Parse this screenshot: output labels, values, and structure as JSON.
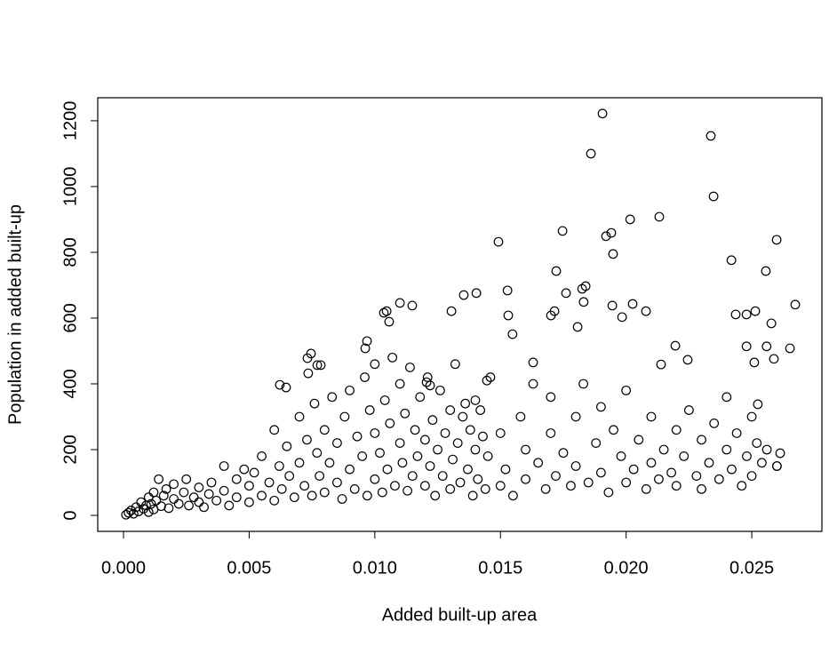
{
  "chart_data": {
    "type": "scatter",
    "x_label": "Added built-up area",
    "y_label": "Population in added built-up",
    "color": "#000000",
    "xlim": [
      -0.001025,
      0.02779
    ],
    "ylim": [
      -48.6,
      1270
    ],
    "xticks": [
      {
        "value": 0,
        "label": "0.000"
      },
      {
        "value": 0.005,
        "label": "0.005"
      },
      {
        "value": 0.01,
        "label": "0.010"
      },
      {
        "value": 0.015,
        "label": "0.015"
      },
      {
        "value": 0.02,
        "label": "0.020"
      },
      {
        "value": 0.025,
        "label": "0.025"
      }
    ],
    "yticks": [
      0,
      200,
      400,
      600,
      800,
      1000,
      1200
    ],
    "x": [
      0.01906,
      0.02337,
      0.0186,
      0.02348,
      0.02599,
      0.01492,
      0.02132,
      0.02016,
      0.01747,
      0.0192,
      0.01941,
      0.01948,
      0.02419,
      0.02556,
      0.02673,
      0.02652,
      0.01722,
      0.01761,
      0.01839,
      0.01825,
      0.01528,
      0.01354,
      0.01404,
      0.011,
      0.01149,
      0.01036,
      0.01047,
      0.01305,
      0.01057,
      0.01531,
      0.01548,
      0.01701,
      0.01715,
      0.02026,
      0.02079,
      0.01984,
      0.01945,
      0.01831,
      0.01807,
      0.02514,
      0.02479,
      0.02436,
      0.02578,
      0.02588,
      0.00622,
      0.00647,
      0.00746,
      0.00732,
      0.00771,
      0.00785,
      0.00735,
      0.00969,
      0.00962,
      0.01206,
      0.0122,
      0.0163,
      0.01446,
      0.02196,
      0.02245,
      0.02139,
      0.02479,
      0.02559,
      0.0251,
      0.02524,
      0.02613,
      0.026,
      0.0001,
      0.0002,
      0.0003,
      0.0004,
      0.0005,
      0.0006,
      0.0007,
      0.0008,
      0.0009,
      0.001,
      0.001,
      0.0011,
      0.0012,
      0.0012,
      0.0013,
      0.0014,
      0.0015,
      0.0016,
      0.0017,
      0.0018,
      0.002,
      0.002,
      0.0022,
      0.0024,
      0.0025,
      0.0026,
      0.0028,
      0.003,
      0.003,
      0.0032,
      0.0034,
      0.0035,
      0.0037,
      0.004,
      0.004,
      0.0042,
      0.0045,
      0.0045,
      0.0048,
      0.005,
      0.005,
      0.0052,
      0.0055,
      0.0055,
      0.0058,
      0.006,
      0.006,
      0.0062,
      0.0063,
      0.0065,
      0.0066,
      0.0068,
      0.007,
      0.007,
      0.0072,
      0.0073,
      0.0075,
      0.0076,
      0.0077,
      0.0078,
      0.008,
      0.008,
      0.0082,
      0.0083,
      0.0085,
      0.0085,
      0.0087,
      0.0088,
      0.009,
      0.009,
      0.0092,
      0.0093,
      0.0095,
      0.0096,
      0.0097,
      0.0098,
      0.01,
      0.01,
      0.01,
      0.0102,
      0.0103,
      0.0104,
      0.0105,
      0.0106,
      0.0107,
      0.0108,
      0.011,
      0.011,
      0.0111,
      0.0112,
      0.0113,
      0.0114,
      0.0115,
      0.0116,
      0.0117,
      0.0118,
      0.012,
      0.012,
      0.0121,
      0.0122,
      0.0123,
      0.0124,
      0.0125,
      0.0126,
      0.0127,
      0.0128,
      0.013,
      0.013,
      0.0131,
      0.0132,
      0.0133,
      0.0134,
      0.0135,
      0.0136,
      0.0137,
      0.0138,
      0.0139,
      0.014,
      0.014,
      0.0141,
      0.0142,
      0.0143,
      0.0144,
      0.0145,
      0.0146,
      0.015,
      0.015,
      0.0152,
      0.0155,
      0.0158,
      0.016,
      0.016,
      0.0163,
      0.0165,
      0.0168,
      0.017,
      0.017,
      0.0172,
      0.0175,
      0.0178,
      0.018,
      0.018,
      0.0183,
      0.0185,
      0.0188,
      0.019,
      0.019,
      0.0193,
      0.0195,
      0.0198,
      0.02,
      0.02,
      0.0203,
      0.0205,
      0.0208,
      0.021,
      0.021,
      0.0213,
      0.0215,
      0.0218,
      0.022,
      0.022,
      0.0223,
      0.0225,
      0.0228,
      0.023,
      0.023,
      0.0233,
      0.0235,
      0.0237,
      0.024,
      0.024,
      0.0242,
      0.0244,
      0.0246,
      0.0248,
      0.025,
      0.025,
      0.0252,
      0.0254,
      0.0256,
      0.026
    ],
    "values": [
      1222,
      1154,
      1100,
      970,
      838,
      832,
      908,
      900,
      865,
      849,
      859,
      795,
      776,
      743,
      641,
      508,
      743,
      676,
      697,
      689,
      684,
      670,
      676,
      646,
      638,
      616,
      621,
      621,
      589,
      608,
      551,
      608,
      621,
      643,
      621,
      603,
      638,
      649,
      573,
      621,
      611,
      611,
      584,
      476,
      397,
      389,
      492,
      478,
      457,
      457,
      432,
      530,
      508,
      405,
      395,
      465,
      410,
      516,
      473,
      459,
      514,
      514,
      465,
      338,
      189,
      150,
      2,
      8,
      15,
      5,
      25,
      12,
      40,
      20,
      30,
      55,
      10,
      35,
      70,
      18,
      45,
      110,
      28,
      60,
      80,
      22,
      50,
      95,
      35,
      70,
      110,
      30,
      55,
      85,
      40,
      25,
      65,
      100,
      45,
      150,
      75,
      30,
      110,
      55,
      140,
      40,
      90,
      130,
      60,
      180,
      100,
      260,
      45,
      150,
      80,
      210,
      120,
      55,
      300,
      160,
      90,
      230,
      60,
      340,
      190,
      120,
      260,
      70,
      160,
      360,
      100,
      220,
      50,
      300,
      140,
      380,
      80,
      240,
      180,
      420,
      60,
      320,
      110,
      250,
      460,
      190,
      70,
      350,
      140,
      280,
      480,
      90,
      220,
      400,
      160,
      310,
      75,
      450,
      120,
      260,
      180,
      360,
      90,
      230,
      420,
      150,
      290,
      60,
      200,
      380,
      120,
      250,
      320,
      80,
      170,
      460,
      220,
      100,
      300,
      340,
      140,
      260,
      60,
      200,
      350,
      110,
      320,
      240,
      80,
      180,
      420,
      90,
      250,
      140,
      60,
      300,
      110,
      200,
      400,
      160,
      80,
      250,
      360,
      120,
      190,
      90,
      300,
      150,
      400,
      100,
      220,
      330,
      130,
      70,
      260,
      180,
      100,
      380,
      140,
      230,
      80,
      300,
      160,
      110,
      200,
      130,
      260,
      90,
      180,
      320,
      120,
      230,
      80,
      160,
      280,
      110,
      200,
      360,
      140,
      250,
      90,
      180,
      300,
      120,
      220,
      160,
      200,
      150
    ]
  }
}
